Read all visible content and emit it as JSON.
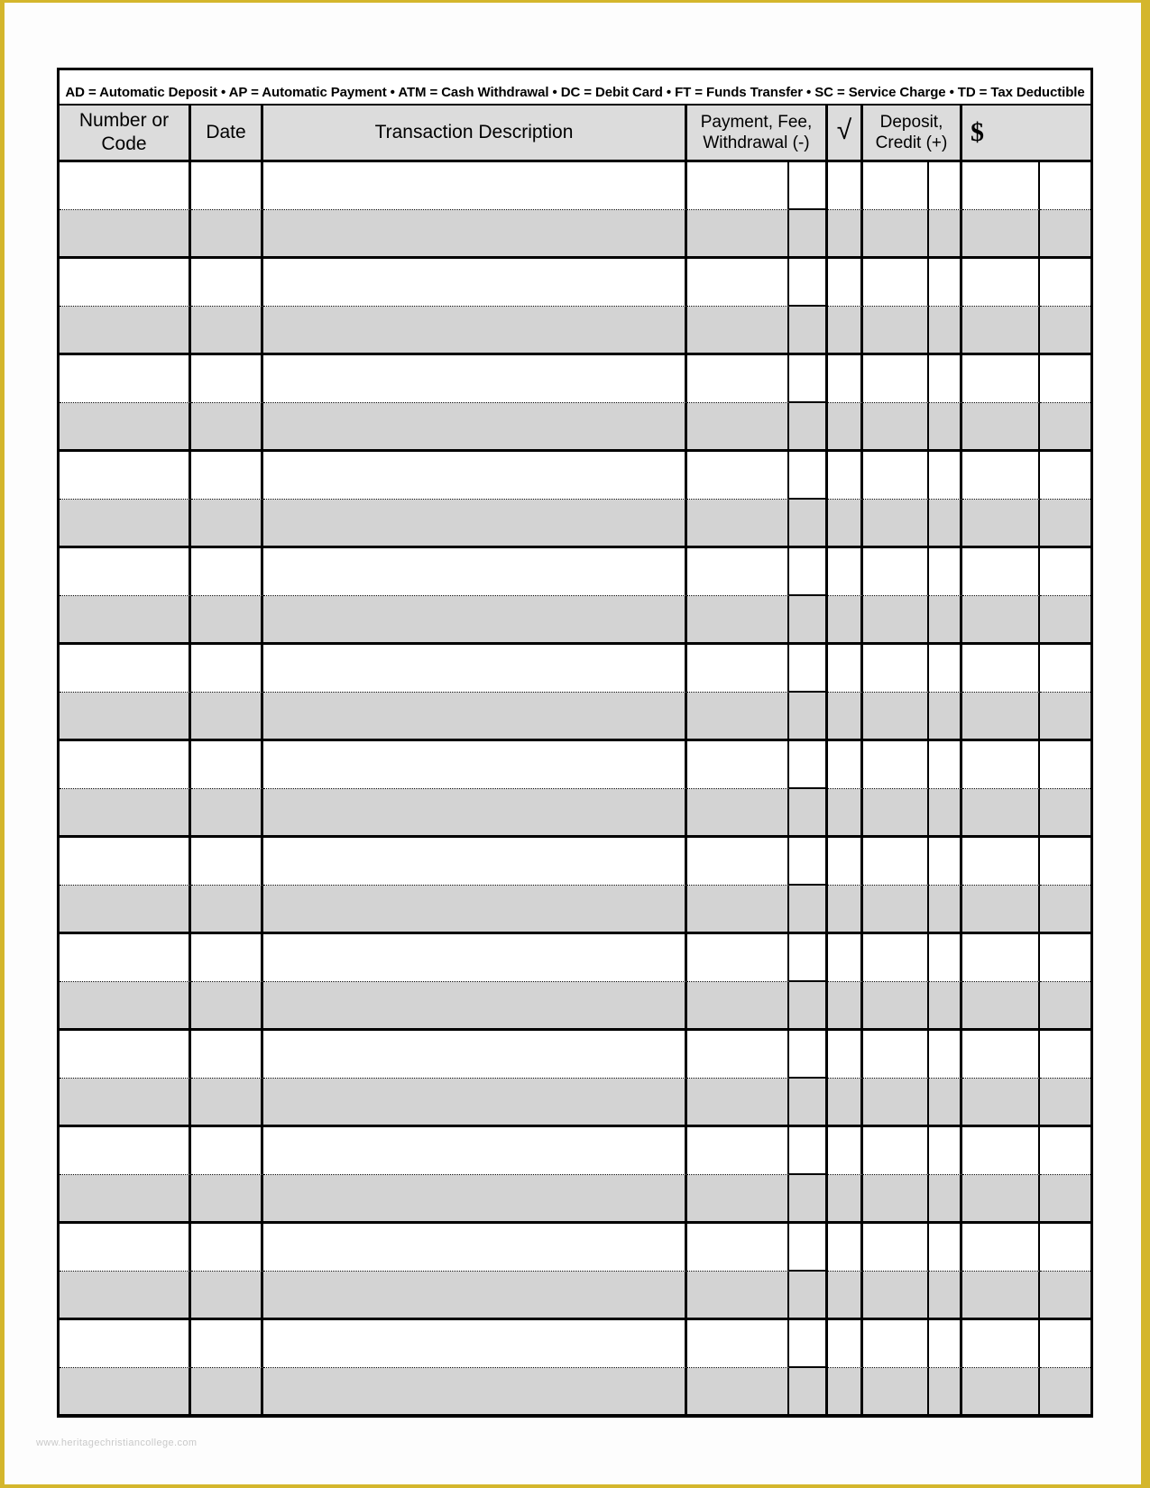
{
  "page": {
    "watermark": "www.heritagechristiancollege.com",
    "frame_color": "#d4b62c",
    "background": "#ffffff"
  },
  "register": {
    "legend": "AD = Automatic Deposit •  AP = Automatic Payment •  ATM = Cash Withdrawal • DC = Debit Card • FT = Funds Transfer • SC = Service Charge • TD = Tax Deductible",
    "columns": [
      {
        "id": "number_or_code",
        "label": "Number or\nCode"
      },
      {
        "id": "date",
        "label": "Date"
      },
      {
        "id": "transaction_description",
        "label": "Transaction Description"
      },
      {
        "id": "payment_fee_withdrawal",
        "label": "Payment, Fee,\nWithdrawal (-)"
      },
      {
        "id": "check_mark",
        "label": "√"
      },
      {
        "id": "deposit_credit",
        "label": "Deposit,\nCredit (+)"
      },
      {
        "id": "balance_dollar",
        "label": "$"
      }
    ],
    "body": {
      "entry_count": 13,
      "entry_cell_value": ""
    },
    "colors": {
      "header_gray": "#dcdcdc",
      "row_alt_gray": "#d3d3d3",
      "grid_black": "#000000",
      "watermark_gray": "#c9c9c9"
    }
  }
}
